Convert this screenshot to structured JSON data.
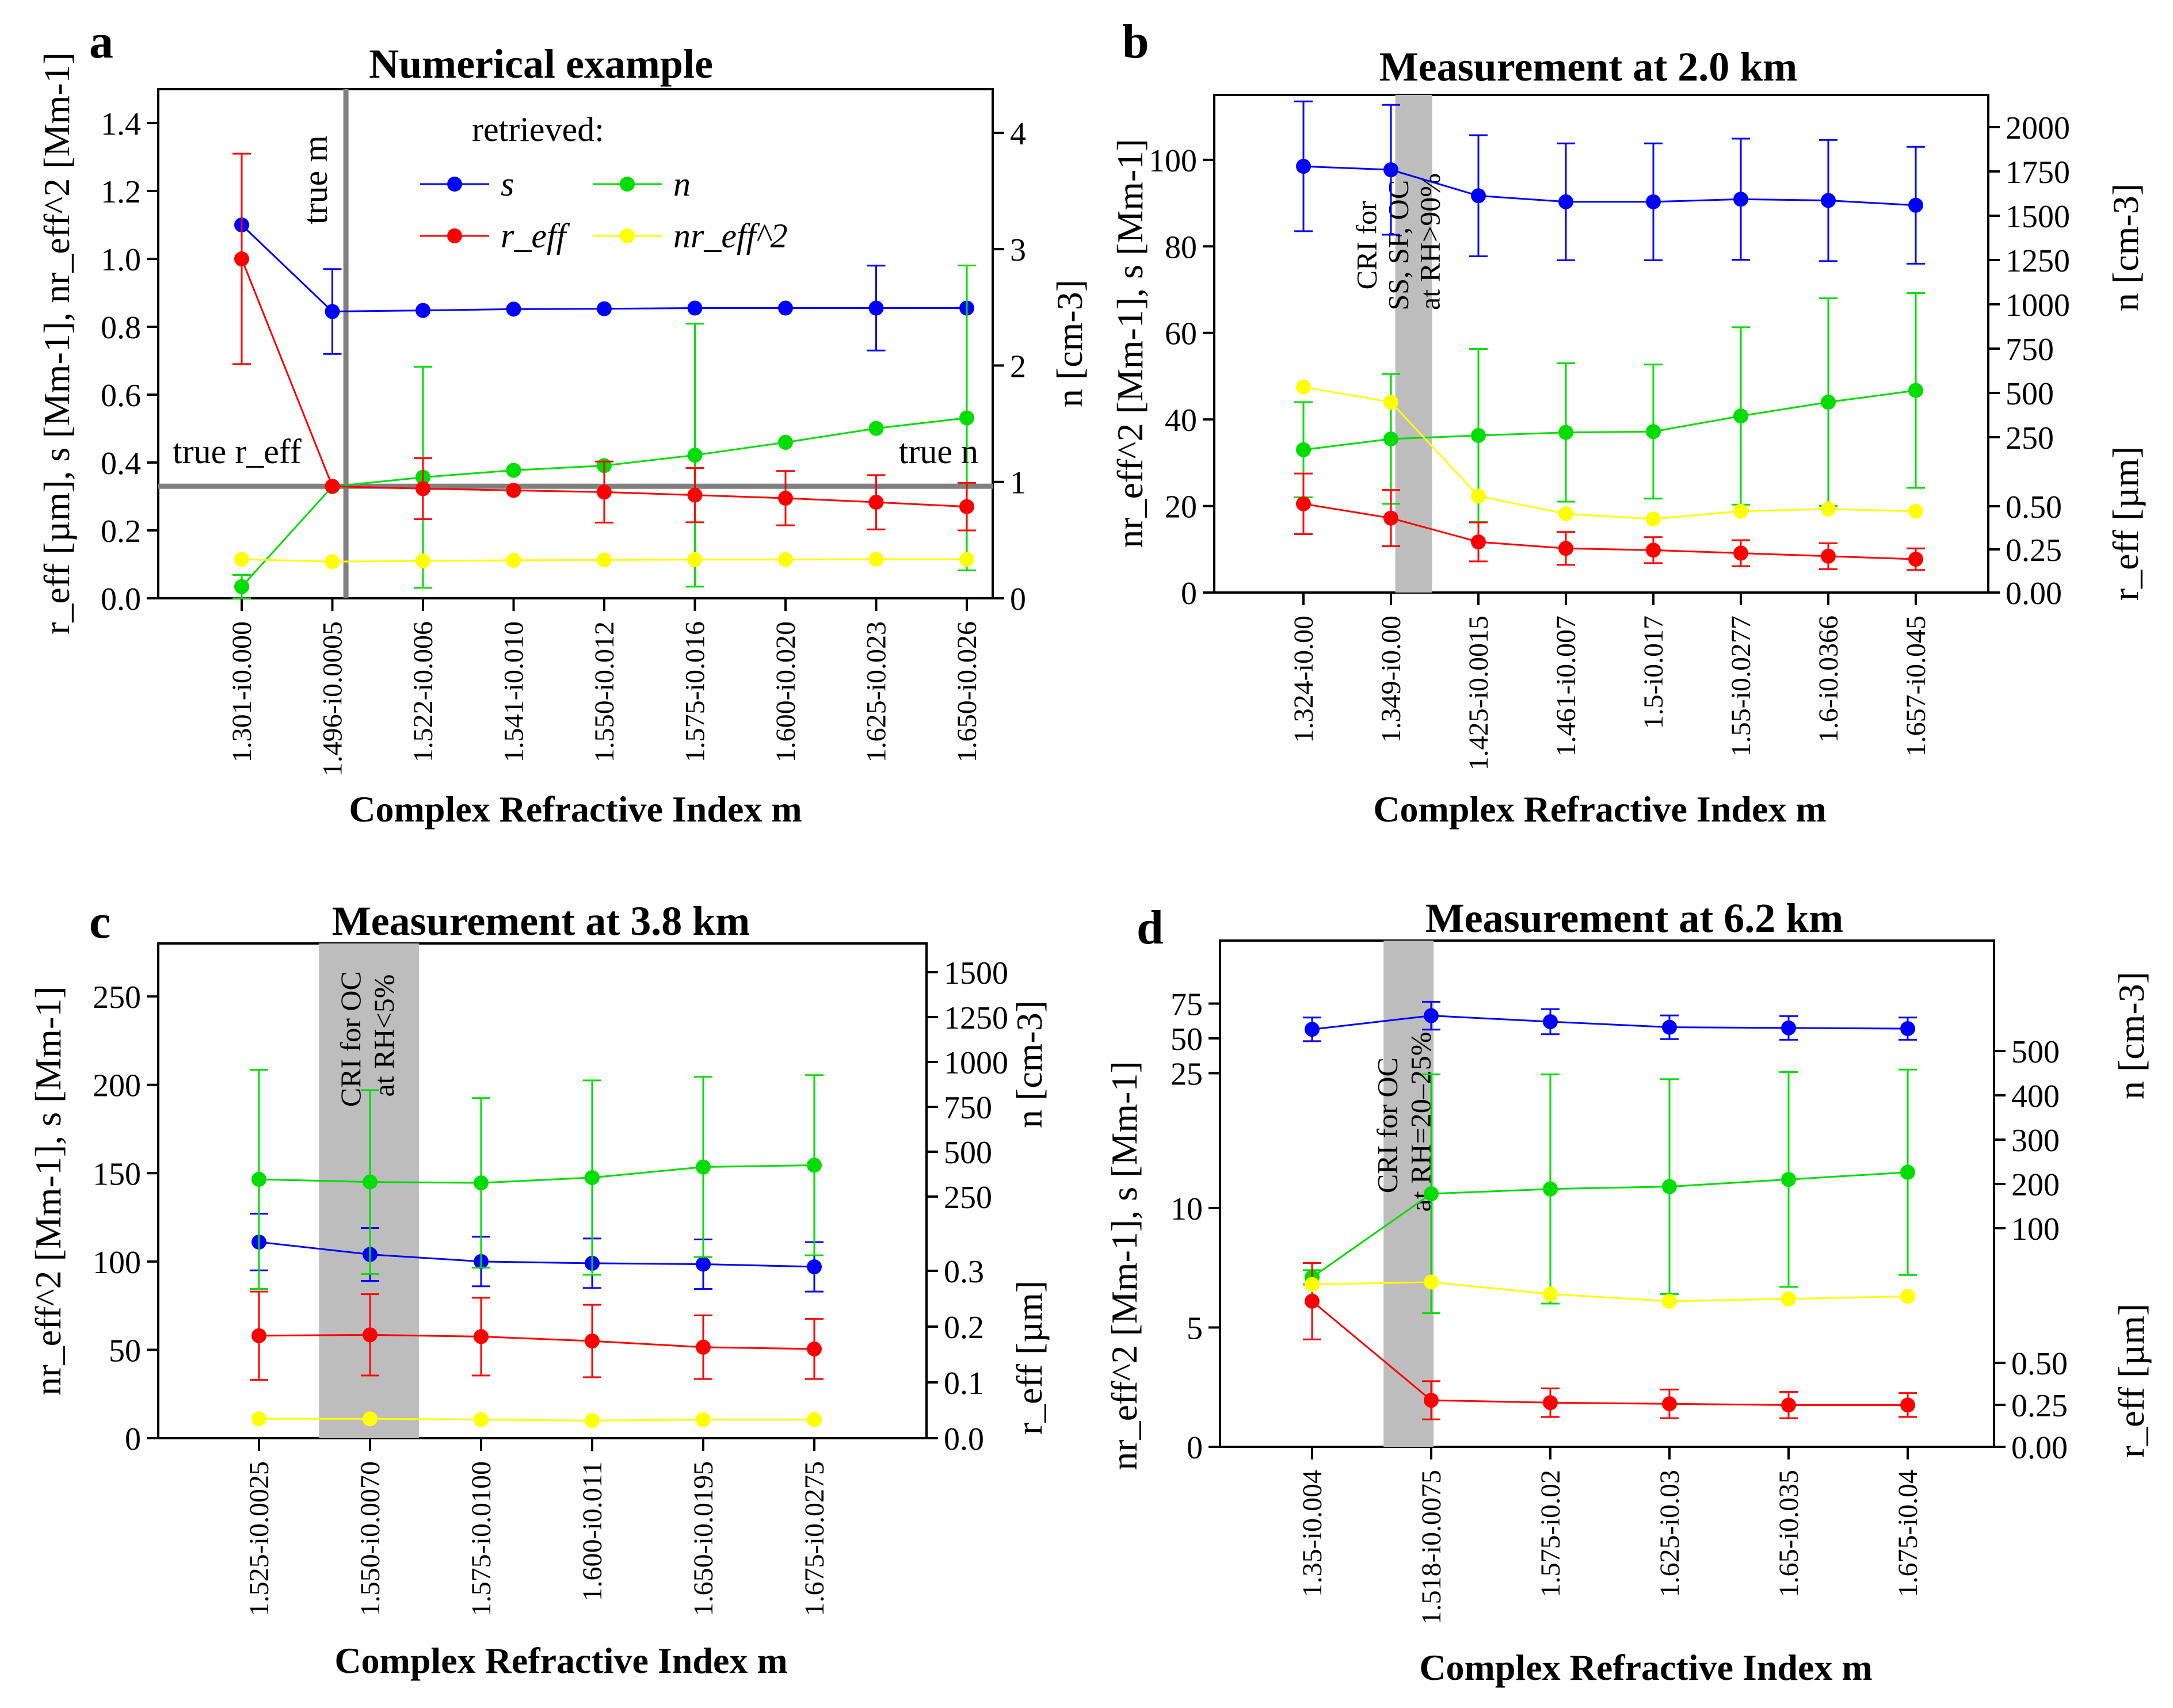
{
  "colors": {
    "s": "#0000ff",
    "n": "#00dd00",
    "reff": "#ff0000",
    "nreff2": "#ffff00",
    "shade": "#bdbdbd",
    "true_line": "#808080"
  },
  "chart_data": [
    {
      "type": "line",
      "panel": "a",
      "title": "Numerical example",
      "xlabel": "Complex Refractive Index m",
      "ylabel_left": "r_eff [µm], s [Mm-1], nr_eff^2 [Mm-1]",
      "ylabel_right": "n [cm-3]",
      "categories": [
        "1.301-i0.000",
        "1.496-i0.0005",
        "1.522-i0.006",
        "1.541-i0.010",
        "1.550-i0.012",
        "1.575-i0.016",
        "1.600-i0.020",
        "1.625-i0.023",
        "1.650-i0.026"
      ],
      "ylim_left": [
        0,
        1.5
      ],
      "ylim_right": [
        0,
        4.375
      ],
      "yticks_left": [
        "0.0",
        "0.2",
        "0.4",
        "0.6",
        "0.8",
        "1.0",
        "1.2",
        "1.4"
      ],
      "yticks_right": [
        "0",
        "1",
        "2",
        "3",
        "4"
      ],
      "legend_title": "retrieved:",
      "legend": [
        {
          "key": "s",
          "label": "s"
        },
        {
          "key": "n",
          "label": "n"
        },
        {
          "key": "reff",
          "label": "r_eff"
        },
        {
          "key": "nreff2",
          "label": "nr_eff^2"
        }
      ],
      "annotations": {
        "true_m": "true m",
        "true_reff": "true r_eff",
        "true_n": "true n"
      },
      "true_lines": {
        "x_category": 1.15,
        "y_value": 0.33
      },
      "series": [
        {
          "name": "s",
          "axis": "left",
          "values": [
            1.1,
            0.845,
            0.848,
            0.852,
            0.853,
            0.855,
            0.855,
            0.855,
            0.855
          ],
          "err": [
            0,
            0.125,
            0,
            0,
            0,
            0,
            0,
            0.125,
            0
          ]
        },
        {
          "name": "n",
          "axis": "right",
          "values": [
            0.1,
            0.96,
            1.04,
            1.1,
            1.14,
            1.23,
            1.34,
            1.46,
            1.55
          ],
          "err": [
            0.1,
            0,
            0.95,
            0,
            0,
            1.13,
            0,
            0,
            1.31
          ]
        },
        {
          "name": "reff",
          "axis": "left",
          "values": [
            1.0,
            0.33,
            0.323,
            0.318,
            0.313,
            0.304,
            0.295,
            0.283,
            0.27
          ],
          "err": [
            0.31,
            0,
            0.09,
            0,
            0.09,
            0.08,
            0.08,
            0.08,
            0.07
          ]
        },
        {
          "name": "nreff2",
          "axis": "left",
          "values": [
            0.115,
            0.108,
            0.11,
            0.112,
            0.113,
            0.114,
            0.114,
            0.115,
            0.115
          ],
          "err": [
            0,
            0,
            0,
            0,
            0,
            0,
            0,
            0,
            0
          ]
        }
      ]
    },
    {
      "type": "line",
      "panel": "b",
      "title": "Measurement at 2.0 km",
      "xlabel": "Complex Refractive Index m",
      "ylabel_left": "nr_eff^2 [Mm-1], s [Mm-1]",
      "ylabel_right_top": "n [cm-3]",
      "ylabel_right_bottom": "r_eff [µm]",
      "categories": [
        "1.324-i0.00",
        "1.349-i0.00",
        "1.425-i0.0015",
        "1.461-i0.007",
        "1.5-i0.017",
        "1.55-i0.0277",
        "1.6-i0.0366",
        "1.657-i0.045"
      ],
      "ylim_left": [
        0,
        115
      ],
      "yticks_left": [
        "0",
        "20",
        "40",
        "60",
        "80",
        "100"
      ],
      "yticks_right_top": [
        "250",
        "500",
        "750",
        "1000",
        "1250",
        "1500",
        "1750",
        "2000"
      ],
      "yticks_right_bottom": [
        "0.00",
        "0.25",
        "0.50"
      ],
      "shaded_text": [
        "CRI for",
        "SS, SF, OC",
        "at RH>90%"
      ],
      "series": [
        {
          "name": "s",
          "axis": "left",
          "values": [
            98.5,
            97.7,
            91.7,
            90.3,
            90.3,
            90.9,
            90.6,
            89.5
          ],
          "err": [
            15,
            15,
            14,
            13.5,
            13.5,
            14,
            14,
            13.5
          ]
        },
        {
          "name": "n",
          "axis": "left",
          "values": [
            33,
            35.5,
            36.3,
            37,
            37.2,
            40.8,
            44,
            46.7
          ],
          "err": [
            11,
            15,
            20,
            16,
            15.5,
            20.5,
            24,
            22.5
          ]
        },
        {
          "name": "reff",
          "axis": "left",
          "values": [
            20.5,
            17.2,
            11.7,
            10.2,
            9.8,
            9.1,
            8.4,
            7.7
          ],
          "err": [
            7,
            6.5,
            4.5,
            3.8,
            3,
            3,
            3,
            2.5
          ]
        },
        {
          "name": "nreff2",
          "axis": "left",
          "values": [
            47.5,
            44,
            22.3,
            18.2,
            17,
            18.8,
            19.3,
            18.8
          ],
          "err": [
            0,
            0,
            0,
            0,
            0,
            0,
            0,
            0
          ]
        }
      ]
    },
    {
      "type": "line",
      "panel": "c",
      "title": "Measurement at 3.8 km",
      "xlabel": "Complex Refractive Index m",
      "ylabel_left": "nr_eff^2 [Mm-1], s [Mm-1]",
      "ylabel_right_top": "n [cm-3]",
      "ylabel_right_bottom": "r_eff [µm]",
      "categories": [
        "1.525-i0.0025",
        "1.550-i0.0070",
        "1.575-i0.0100",
        "1.600-i0.011",
        "1.650-i0.0195",
        "1.675-i0.0275"
      ],
      "ylim_left": [
        0,
        280
      ],
      "yticks_left": [
        "0",
        "50",
        "100",
        "150",
        "200",
        "250"
      ],
      "yticks_right_top": [
        "250",
        "500",
        "750",
        "1000",
        "1250",
        "1500"
      ],
      "yticks_right_bottom": [
        "0.0",
        "0.1",
        "0.2",
        "0.3"
      ],
      "shaded_text": [
        "CRI for OC",
        "at RH<5%"
      ],
      "series": [
        {
          "name": "s",
          "axis": "left",
          "values": [
            111,
            104,
            100,
            99,
            98.5,
            97
          ],
          "err": [
            16,
            15,
            14,
            14,
            14,
            14
          ]
        },
        {
          "name": "n",
          "axis": "left",
          "values": [
            146.5,
            145,
            144.5,
            147.5,
            153.5,
            154.5
          ],
          "err": [
            62,
            52,
            48,
            55,
            51,
            51
          ]
        },
        {
          "name": "reff",
          "axis": "left",
          "values": [
            58,
            58.5,
            57.5,
            55,
            51.5,
            50.5
          ],
          "err": [
            25,
            23,
            22,
            20.5,
            18,
            17
          ]
        },
        {
          "name": "nreff2",
          "axis": "left",
          "values": [
            11,
            11,
            10.5,
            10,
            10.5,
            10.5
          ],
          "err": [
            0,
            0,
            0,
            0,
            0,
            0
          ]
        }
      ]
    },
    {
      "type": "line",
      "panel": "d",
      "title": "Measurement at 6.2 km",
      "xlabel": "Complex Refractive Index m",
      "ylabel_left": "nr_eff^2 [Mm-1], s [Mm-1]",
      "ylabel_right_top": "n [cm-3]",
      "ylabel_right_bottom": "r_eff [µm]",
      "categories": [
        "1.35-i0.004",
        "1.518-i0.0075",
        "1.575-i0.02",
        "1.625-i0.03",
        "1.65-i0.035",
        "1.675-i0.04"
      ],
      "yticks_left_bottom": [
        "0",
        "5",
        "10"
      ],
      "yticks_left_top": [
        "25",
        "50",
        "75"
      ],
      "yticks_right_top": [
        "100",
        "200",
        "300",
        "400",
        "500"
      ],
      "yticks_right_bottom": [
        "0.00",
        "0.25",
        "0.50"
      ],
      "shaded_text": [
        "CRI for OC",
        "at RH=20–25%"
      ],
      "series": [
        {
          "name": "s",
          "axis": "left",
          "values": [
            56.5,
            66.3,
            62,
            58,
            57.5,
            57
          ],
          "err": [
            8.5,
            10,
            9,
            8.5,
            8.5,
            8
          ]
        },
        {
          "name": "n",
          "axis": "left",
          "values": [
            7.1,
            10.6,
            10.8,
            10.9,
            11.2,
            11.5
          ],
          "err": [
            0.3,
            5,
            4.8,
            4.5,
            4.5,
            4.3
          ]
        },
        {
          "name": "reff",
          "axis": "left",
          "values": [
            6.1,
            1.95,
            1.85,
            1.8,
            1.75,
            1.75
          ],
          "err": [
            1.6,
            0.8,
            0.6,
            0.6,
            0.55,
            0.5
          ]
        },
        {
          "name": "nreff2",
          "axis": "left",
          "values": [
            6.8,
            6.9,
            6.4,
            6.1,
            6.2,
            6.3
          ],
          "err": [
            0,
            0,
            0,
            0,
            0,
            0
          ]
        }
      ]
    }
  ]
}
